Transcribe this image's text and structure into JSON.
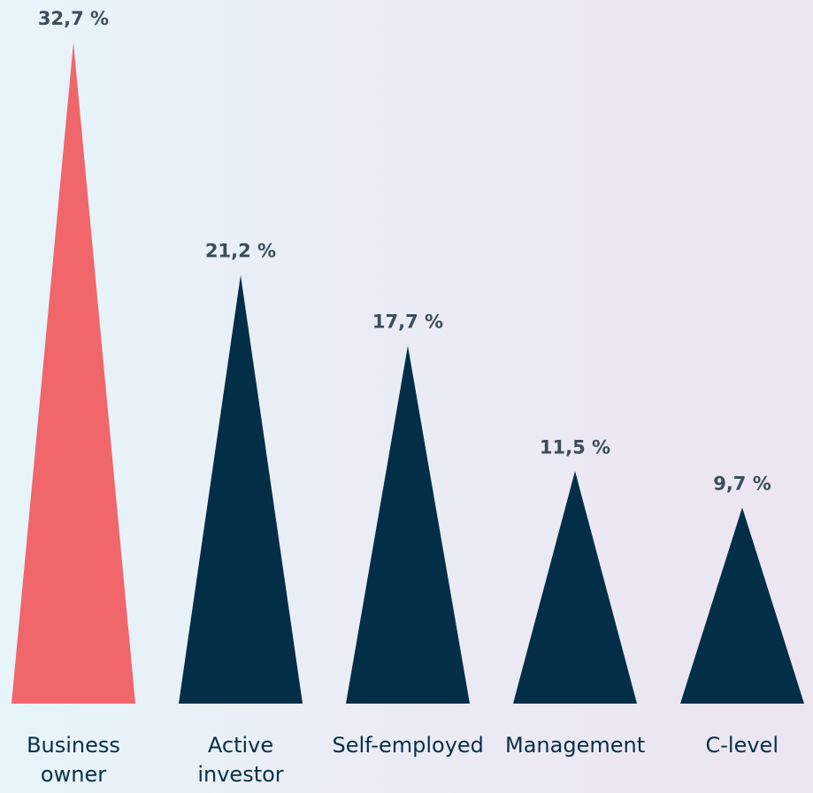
{
  "chart_data": {
    "type": "triangle-bar",
    "categories": [
      "Business owner",
      "Active investor",
      "Self-employed",
      "Management",
      "C-level"
    ],
    "values": [
      32.7,
      21.2,
      17.7,
      11.5,
      9.7
    ],
    "value_labels": [
      "32,7 %",
      "21,2 %",
      "17,7 %",
      "11,5 %",
      "9,7 %"
    ],
    "colors": [
      "#f0666b",
      "#022f47",
      "#022f47",
      "#022f47",
      "#022f47"
    ]
  }
}
